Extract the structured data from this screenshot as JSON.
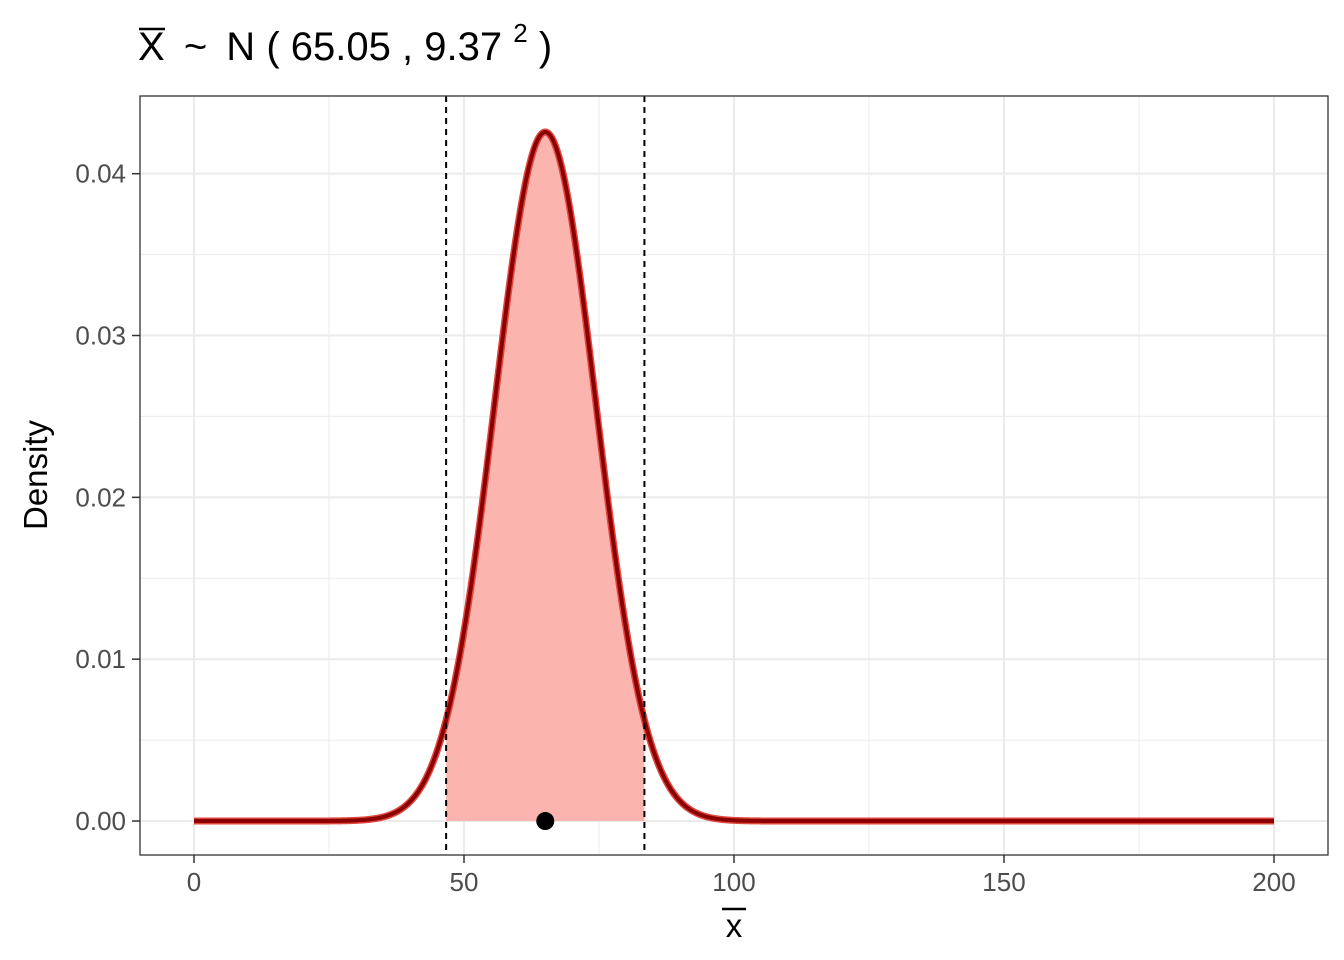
{
  "chart_data": {
    "type": "area",
    "title": {
      "variable": "X",
      "tilde": "~",
      "dist": "N",
      "mean": "65.05",
      "sd": "9.37",
      "exponent": "2"
    },
    "xlabel": "x",
    "ylabel": "Density",
    "xlim": [
      -10,
      210
    ],
    "ylim": [
      -0.0021,
      0.0448
    ],
    "x_ticks": [
      0,
      50,
      100,
      150,
      200
    ],
    "x_tick_labels": [
      "0",
      "50",
      "100",
      "150",
      "200"
    ],
    "y_ticks": [
      0,
      0.01,
      0.02,
      0.03,
      0.04
    ],
    "y_tick_labels": [
      "0.00",
      "0.01",
      "0.02",
      "0.03",
      "0.04"
    ],
    "grid": true,
    "distribution": {
      "family": "normal",
      "mean": 65.05,
      "sd": 9.37,
      "x_range": [
        0,
        200
      ]
    },
    "shaded_interval": [
      46.69,
      83.41
    ],
    "vlines": [
      46.69,
      83.41
    ],
    "point": {
      "x": 65.05,
      "y": 0
    },
    "colors": {
      "curve": "#8B0000",
      "curve_edge": "#e0483f",
      "fill": "#fbb4ae",
      "grid": "#ebebeb",
      "point": "#000000"
    }
  }
}
